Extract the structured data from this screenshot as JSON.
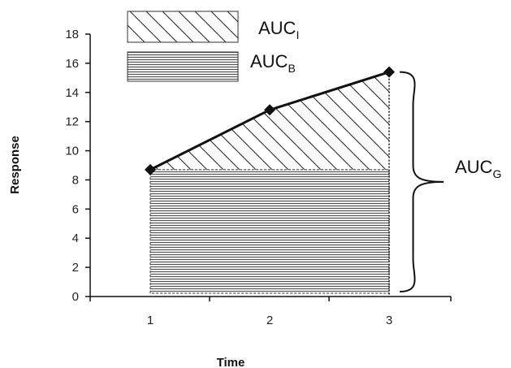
{
  "chart_data": {
    "type": "line",
    "title": "",
    "xlabel": "Time",
    "ylabel": "Response",
    "x_ticks": [
      "1",
      "2",
      "3"
    ],
    "y_ticks": [
      "0",
      "2",
      "4",
      "6",
      "8",
      "10",
      "12",
      "14",
      "16",
      "18"
    ],
    "ylim": [
      0,
      18
    ],
    "x": [
      1,
      2,
      3
    ],
    "series": [
      {
        "values": [
          8.7,
          12.8,
          15.4
        ]
      }
    ],
    "baseline": 8.7,
    "legend": [
      {
        "main": "AUC",
        "sub": "I",
        "pattern": "diagonal-hatch"
      },
      {
        "main": "AUC",
        "sub": "B",
        "pattern": "horizontal-lines"
      }
    ],
    "bracket_annotation": {
      "main": "AUC",
      "sub": "G"
    },
    "legend_position": "top-left",
    "grid": false,
    "colors": {
      "line": "#111111",
      "hatch": "#222222",
      "fill_lines": "#555555"
    }
  }
}
